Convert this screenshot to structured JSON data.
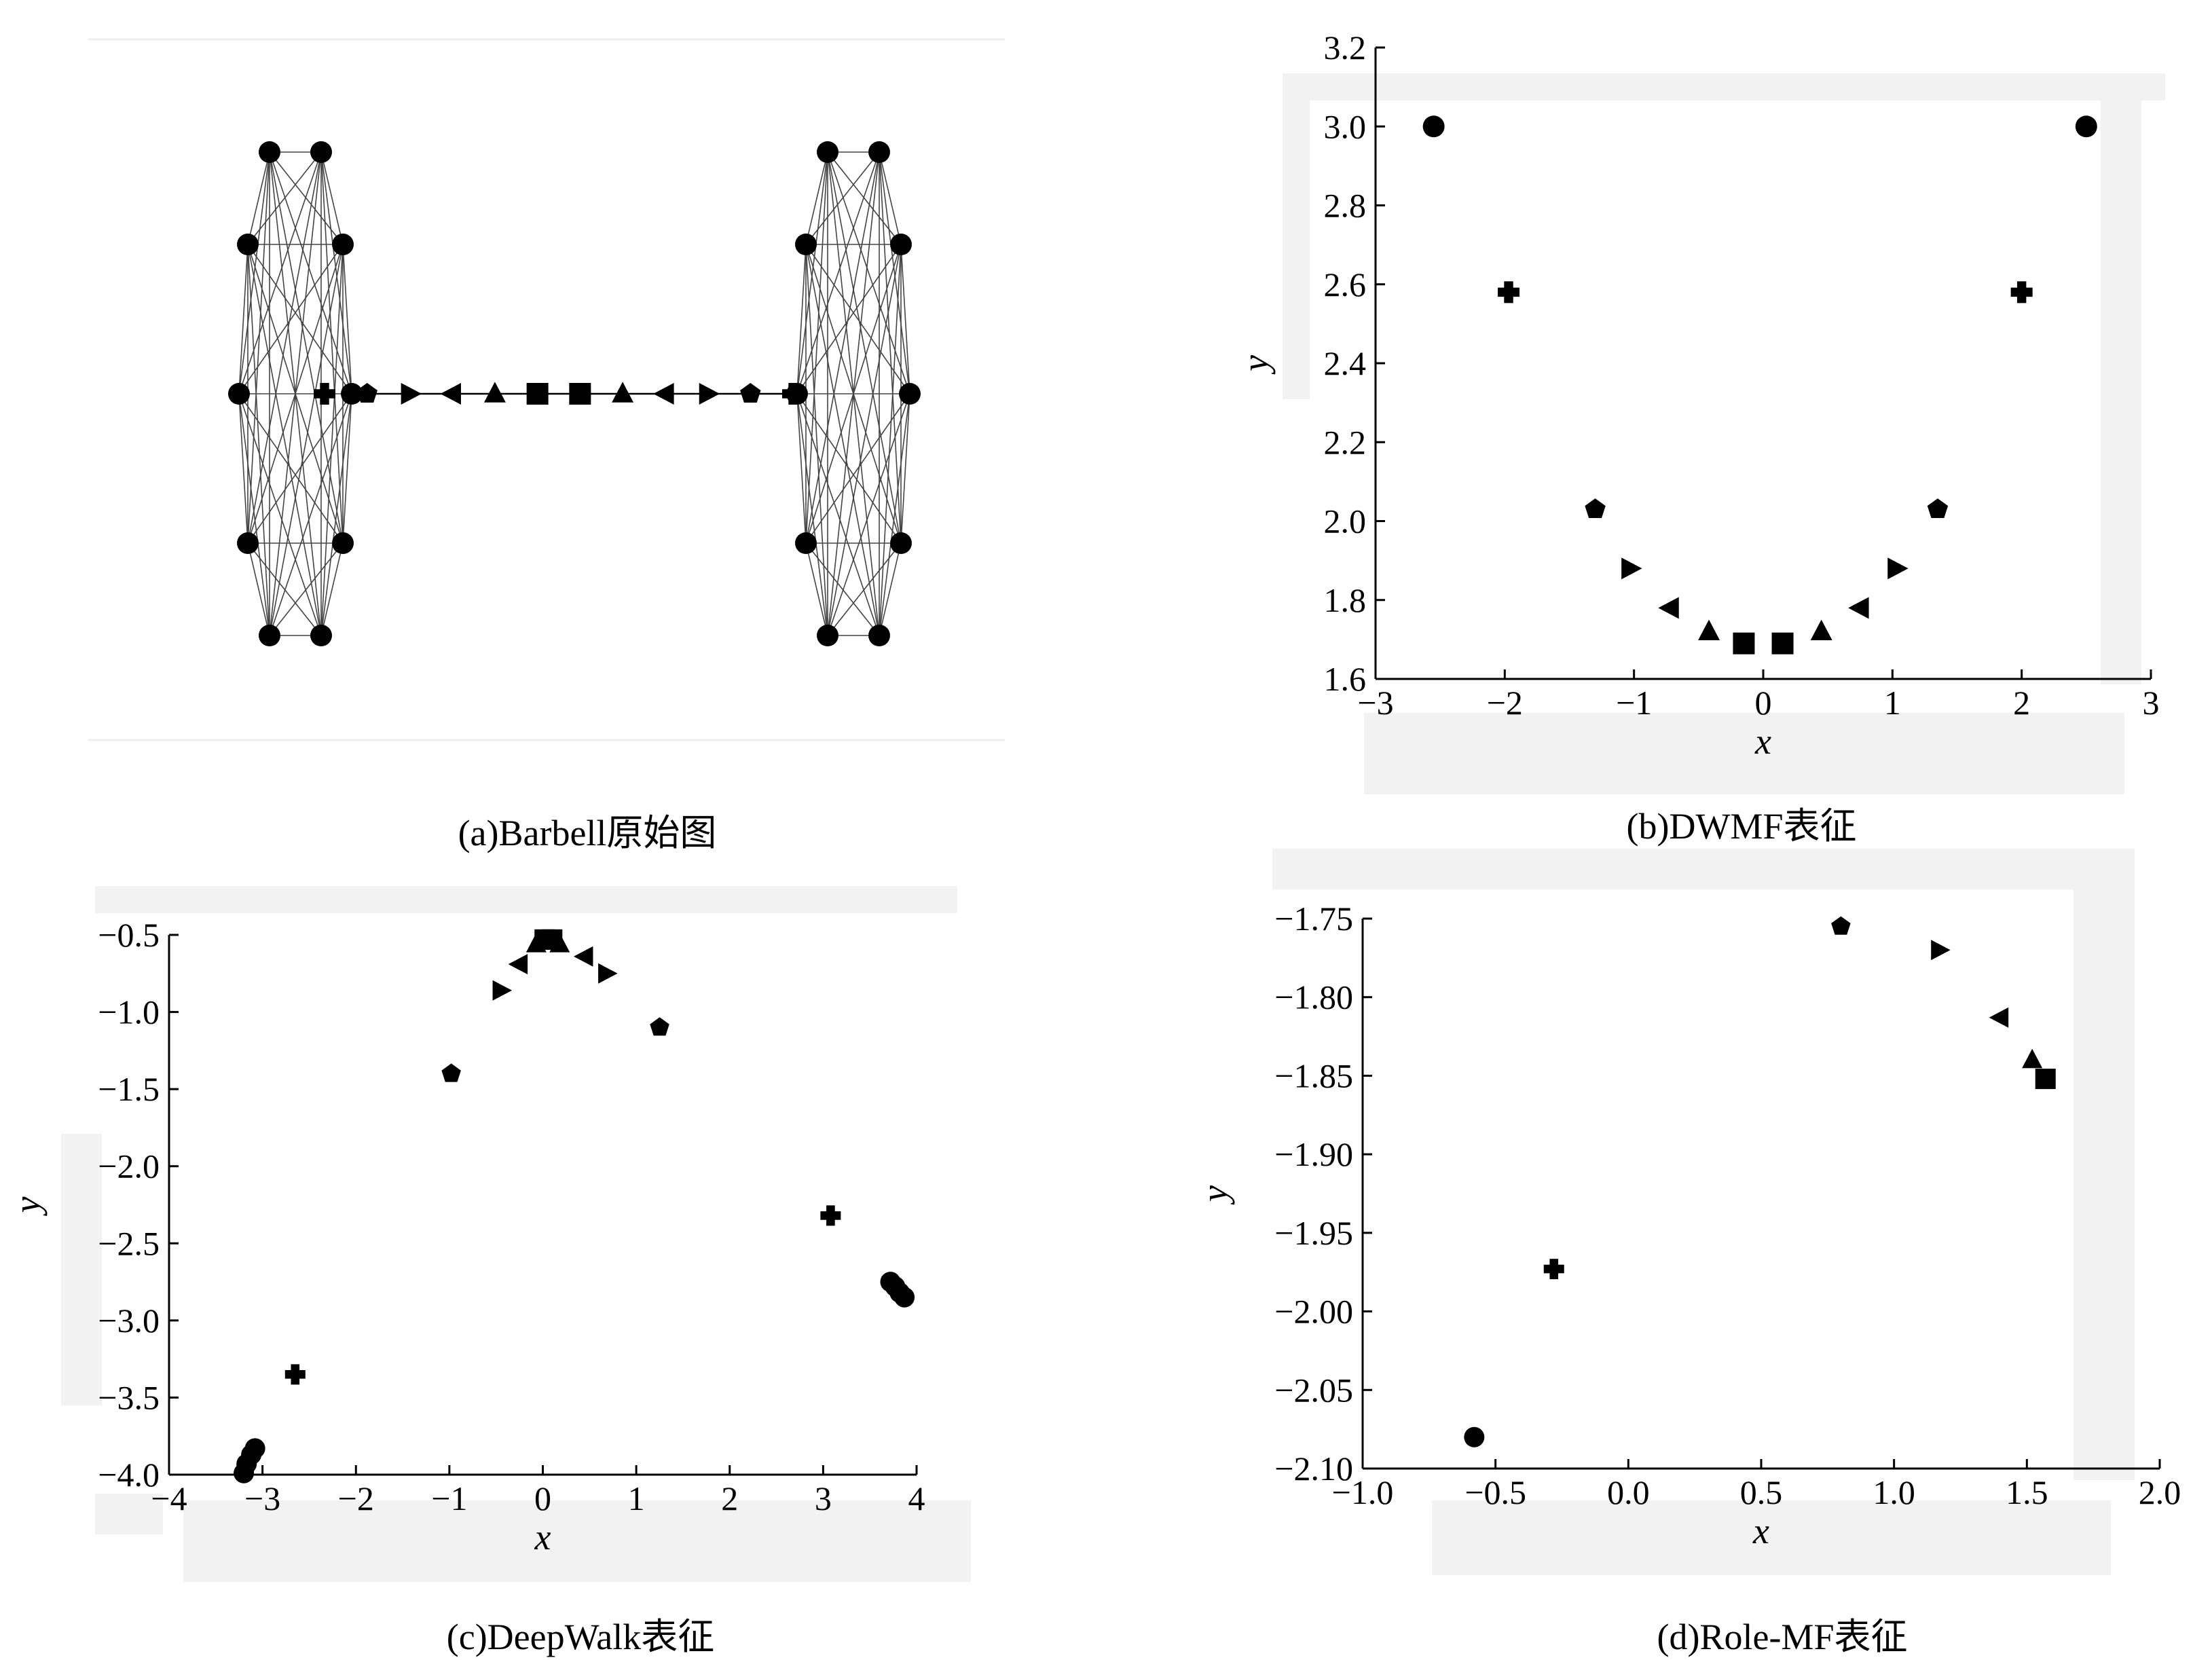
{
  "captions": {
    "a": "(a)Barbell原始图",
    "b": "(b)DWMF表征",
    "c": "(c)DeepWalk表征",
    "d": "(d)Role-MF表征"
  },
  "chart_data": [
    {
      "id": "a",
      "type": "graph",
      "title": "(a)Barbell原始图",
      "clique_left_nodes": 10,
      "clique_right_nodes": 10,
      "bridge_nodes": [
        "plus",
        "pentagon",
        "triangle-right",
        "triangle-left",
        "triangle-up",
        "square",
        "square",
        "triangle-up",
        "triangle-left",
        "triangle-right",
        "pentagon",
        "plus"
      ]
    },
    {
      "id": "b",
      "type": "scatter",
      "title": "(b)DWMF表征",
      "xlabel": "x",
      "ylabel": "y",
      "xlim": [
        -3,
        3
      ],
      "ylim": [
        1.6,
        3.2
      ],
      "xticks": [
        -3,
        -2,
        -1,
        0,
        1,
        2,
        3
      ],
      "xtick_labels": [
        "−3",
        "−2",
        "−1",
        "0",
        "1",
        "2",
        "3"
      ],
      "yticks": [
        1.6,
        1.8,
        2.0,
        2.2,
        2.4,
        2.6,
        2.8,
        3.0,
        3.2
      ],
      "ytick_labels": [
        "1.6",
        "1.8",
        "2.0",
        "2.2",
        "2.4",
        "2.6",
        "2.8",
        "3.0",
        "3.2"
      ],
      "points": [
        {
          "x": -2.55,
          "y": 3.0,
          "marker": "circle"
        },
        {
          "x": 2.5,
          "y": 3.0,
          "marker": "circle"
        },
        {
          "x": -1.97,
          "y": 2.58,
          "marker": "plus"
        },
        {
          "x": 2.0,
          "y": 2.58,
          "marker": "plus"
        },
        {
          "x": -1.3,
          "y": 2.03,
          "marker": "pentagon"
        },
        {
          "x": 1.35,
          "y": 2.03,
          "marker": "pentagon"
        },
        {
          "x": -1.03,
          "y": 1.88,
          "marker": "triangle-right"
        },
        {
          "x": 1.03,
          "y": 1.88,
          "marker": "triangle-right"
        },
        {
          "x": -0.72,
          "y": 1.78,
          "marker": "triangle-left"
        },
        {
          "x": 0.75,
          "y": 1.78,
          "marker": "triangle-left"
        },
        {
          "x": -0.42,
          "y": 1.72,
          "marker": "triangle-up"
        },
        {
          "x": 0.45,
          "y": 1.72,
          "marker": "triangle-up"
        },
        {
          "x": -0.15,
          "y": 1.69,
          "marker": "square"
        },
        {
          "x": 0.15,
          "y": 1.69,
          "marker": "square"
        }
      ]
    },
    {
      "id": "c",
      "type": "scatter",
      "title": "(c)DeepWalk表征",
      "xlabel": "x",
      "ylabel": "y",
      "xlim": [
        -4,
        4
      ],
      "ylim": [
        -4.0,
        -0.5
      ],
      "xticks": [
        -4,
        -3,
        -2,
        -1,
        0,
        1,
        2,
        3,
        4
      ],
      "xtick_labels": [
        "−4",
        "−3",
        "−2",
        "−1",
        "0",
        "1",
        "2",
        "3",
        "4"
      ],
      "yticks": [
        -4.0,
        -3.5,
        -3.0,
        -2.5,
        -2.0,
        -1.5,
        -1.0,
        -0.5
      ],
      "ytick_labels": [
        "−4.0",
        "−3.5",
        "−3.0",
        "−2.5",
        "−2.0",
        "−1.5",
        "−1.0",
        "−0.5"
      ],
      "points": [
        {
          "x": -3.2,
          "y": -3.99,
          "marker": "circle"
        },
        {
          "x": -3.17,
          "y": -3.93,
          "marker": "circle"
        },
        {
          "x": -3.12,
          "y": -3.87,
          "marker": "circle"
        },
        {
          "x": -3.08,
          "y": -3.83,
          "marker": "circle"
        },
        {
          "x": 3.72,
          "y": -2.75,
          "marker": "circle"
        },
        {
          "x": 3.77,
          "y": -2.78,
          "marker": "circle"
        },
        {
          "x": 3.82,
          "y": -2.82,
          "marker": "circle"
        },
        {
          "x": 3.87,
          "y": -2.85,
          "marker": "circle"
        },
        {
          "x": -2.65,
          "y": -3.35,
          "marker": "plus"
        },
        {
          "x": 3.08,
          "y": -2.32,
          "marker": "plus"
        },
        {
          "x": -0.98,
          "y": -1.4,
          "marker": "pentagon"
        },
        {
          "x": 1.25,
          "y": -1.1,
          "marker": "pentagon"
        },
        {
          "x": -0.45,
          "y": -0.86,
          "marker": "triangle-right"
        },
        {
          "x": 0.68,
          "y": -0.75,
          "marker": "triangle-right"
        },
        {
          "x": -0.25,
          "y": -0.69,
          "marker": "triangle-left"
        },
        {
          "x": 0.45,
          "y": -0.64,
          "marker": "triangle-left"
        },
        {
          "x": -0.07,
          "y": -0.56,
          "marker": "triangle-up"
        },
        {
          "x": 0.18,
          "y": -0.56,
          "marker": "triangle-up"
        },
        {
          "x": 0.02,
          "y": -0.53,
          "marker": "square"
        },
        {
          "x": 0.1,
          "y": -0.53,
          "marker": "square"
        }
      ]
    },
    {
      "id": "d",
      "type": "scatter",
      "title": "(d)Role-MF表征",
      "xlabel": "x",
      "ylabel": "y",
      "xlim": [
        -1.0,
        2.0
      ],
      "ylim": [
        -2.1,
        -1.75
      ],
      "xticks": [
        -1.0,
        -0.5,
        0.0,
        0.5,
        1.0,
        1.5,
        2.0
      ],
      "xtick_labels": [
        "−1.0",
        "−0.5",
        "0.0",
        "0.5",
        "1.0",
        "1.5",
        "2.0"
      ],
      "yticks": [
        -2.1,
        -2.05,
        -2.0,
        -1.95,
        -1.9,
        -1.85,
        -1.8,
        -1.75
      ],
      "ytick_labels": [
        "−2.10",
        "−2.05",
        "−2.00",
        "−1.95",
        "−1.90",
        "−1.85",
        "−1.80",
        "−1.75"
      ],
      "points": [
        {
          "x": -0.58,
          "y": -2.08,
          "marker": "circle"
        },
        {
          "x": -0.28,
          "y": -1.973,
          "marker": "plus"
        },
        {
          "x": 0.8,
          "y": -1.755,
          "marker": "pentagon"
        },
        {
          "x": 1.17,
          "y": -1.77,
          "marker": "triangle-right"
        },
        {
          "x": 1.4,
          "y": -1.813,
          "marker": "triangle-left"
        },
        {
          "x": 1.52,
          "y": -1.84,
          "marker": "triangle-up"
        },
        {
          "x": 1.57,
          "y": -1.852,
          "marker": "square"
        }
      ]
    }
  ]
}
